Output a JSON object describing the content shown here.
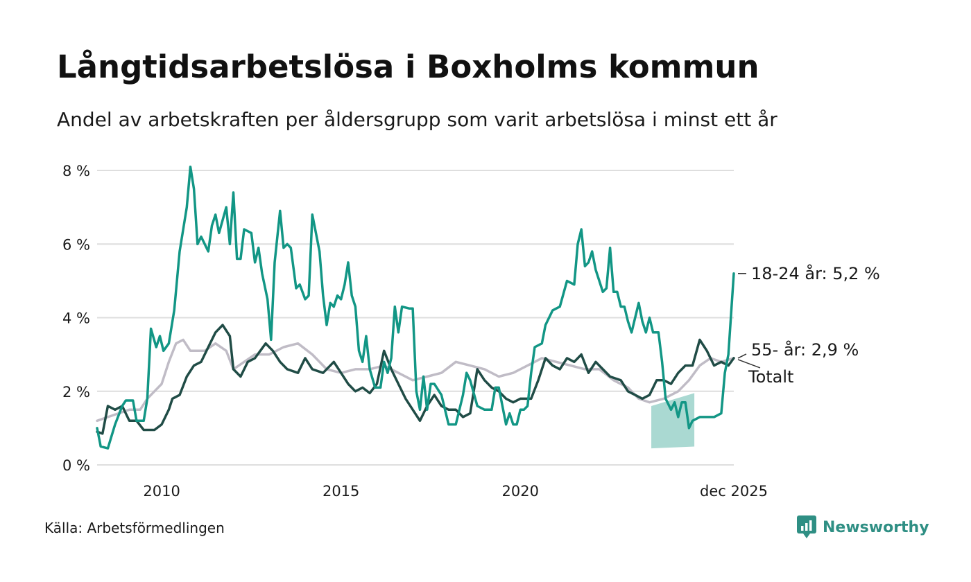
{
  "title": "Långtidsarbetslösa i Boxholms kommun",
  "subtitle": "Andel av arbetskraften per åldersgrupp som varit arbetslösa i minst ett år",
  "source": "Källa: Arbetsförmedlingen",
  "brand": "Newsworthy",
  "colors": {
    "youth": "#129685",
    "senior": "#204c46",
    "total": "#c0bcc6",
    "band": "#a5d7d0",
    "grid": "#dedede",
    "brand": "#2f8f84"
  },
  "chart_data": {
    "type": "line",
    "title": "Långtidsarbetslösa i Boxholms kommun",
    "xlabel": "",
    "ylabel": "",
    "xlim": [
      2008.2,
      2025.95
    ],
    "ylim": [
      0,
      8
    ],
    "y_ticks": [
      0,
      2,
      4,
      6,
      8
    ],
    "y_tick_labels": [
      "0 %",
      "2 %",
      "4 %",
      "6 %",
      "8 %"
    ],
    "x_ticks": [
      2010,
      2015,
      2020,
      2025.95
    ],
    "x_tick_labels": [
      "2010",
      "2015",
      "2020",
      "dec 2025"
    ],
    "grid": true,
    "legend": "direct labels at line ends (right)",
    "end_labels": [
      {
        "series": "18-24 år",
        "text": "18-24 år: 5,2 %",
        "value": 5.2
      },
      {
        "series": "55- år",
        "text": "55- år: 2,9 %",
        "value": 2.9
      },
      {
        "series": "Totalt",
        "text": "Totalt",
        "value": 2.9
      }
    ],
    "uncertainty_band": {
      "series": "18-24 år",
      "x": [
        2023.65,
        2024.85
      ],
      "lower": [
        0.45,
        0.5
      ],
      "upper": [
        1.6,
        1.95
      ]
    },
    "series": [
      {
        "name": "Totalt",
        "color": "#c0bcc6",
        "points": [
          [
            2008.2,
            1.2
          ],
          [
            2008.5,
            1.3
          ],
          [
            2008.8,
            1.4
          ],
          [
            2009.1,
            1.5
          ],
          [
            2009.4,
            1.5
          ],
          [
            2009.6,
            1.8
          ],
          [
            2009.8,
            2.0
          ],
          [
            2010.0,
            2.2
          ],
          [
            2010.2,
            2.8
          ],
          [
            2010.4,
            3.3
          ],
          [
            2010.6,
            3.4
          ],
          [
            2010.8,
            3.1
          ],
          [
            2011.2,
            3.1
          ],
          [
            2011.5,
            3.3
          ],
          [
            2011.8,
            3.1
          ],
          [
            2012.0,
            2.6
          ],
          [
            2012.3,
            2.8
          ],
          [
            2012.6,
            3.0
          ],
          [
            2013.0,
            3.0
          ],
          [
            2013.4,
            3.2
          ],
          [
            2013.8,
            3.3
          ],
          [
            2014.2,
            3.0
          ],
          [
            2014.6,
            2.6
          ],
          [
            2015.0,
            2.5
          ],
          [
            2015.4,
            2.6
          ],
          [
            2015.8,
            2.6
          ],
          [
            2016.2,
            2.7
          ],
          [
            2016.6,
            2.5
          ],
          [
            2017.0,
            2.3
          ],
          [
            2017.4,
            2.4
          ],
          [
            2017.8,
            2.5
          ],
          [
            2018.2,
            2.8
          ],
          [
            2018.6,
            2.7
          ],
          [
            2019.0,
            2.6
          ],
          [
            2019.4,
            2.4
          ],
          [
            2019.8,
            2.5
          ],
          [
            2020.2,
            2.7
          ],
          [
            2020.6,
            2.9
          ],
          [
            2021.0,
            2.8
          ],
          [
            2021.4,
            2.7
          ],
          [
            2021.8,
            2.6
          ],
          [
            2022.2,
            2.6
          ],
          [
            2022.6,
            2.3
          ],
          [
            2023.0,
            2.1
          ],
          [
            2023.3,
            1.8
          ],
          [
            2023.6,
            1.7
          ],
          [
            2024.0,
            1.8
          ],
          [
            2024.4,
            2.0
          ],
          [
            2024.7,
            2.3
          ],
          [
            2025.0,
            2.7
          ],
          [
            2025.3,
            2.9
          ],
          [
            2025.6,
            2.8
          ],
          [
            2025.95,
            2.9
          ]
        ]
      },
      {
        "name": "55- år",
        "color": "#204c46",
        "points": [
          [
            2008.2,
            0.9
          ],
          [
            2008.35,
            0.85
          ],
          [
            2008.5,
            1.6
          ],
          [
            2008.7,
            1.5
          ],
          [
            2008.9,
            1.6
          ],
          [
            2009.1,
            1.2
          ],
          [
            2009.3,
            1.2
          ],
          [
            2009.5,
            0.95
          ],
          [
            2009.8,
            0.95
          ],
          [
            2010.0,
            1.1
          ],
          [
            2010.2,
            1.5
          ],
          [
            2010.3,
            1.8
          ],
          [
            2010.5,
            1.9
          ],
          [
            2010.7,
            2.4
          ],
          [
            2010.9,
            2.7
          ],
          [
            2011.1,
            2.8
          ],
          [
            2011.3,
            3.2
          ],
          [
            2011.5,
            3.6
          ],
          [
            2011.7,
            3.8
          ],
          [
            2011.9,
            3.5
          ],
          [
            2012.0,
            2.6
          ],
          [
            2012.2,
            2.4
          ],
          [
            2012.4,
            2.8
          ],
          [
            2012.6,
            2.9
          ],
          [
            2012.9,
            3.3
          ],
          [
            2013.1,
            3.1
          ],
          [
            2013.3,
            2.8
          ],
          [
            2013.5,
            2.6
          ],
          [
            2013.8,
            2.5
          ],
          [
            2014.0,
            2.9
          ],
          [
            2014.2,
            2.6
          ],
          [
            2014.5,
            2.5
          ],
          [
            2014.8,
            2.8
          ],
          [
            2015.0,
            2.5
          ],
          [
            2015.2,
            2.2
          ],
          [
            2015.4,
            2.0
          ],
          [
            2015.6,
            2.1
          ],
          [
            2015.8,
            1.95
          ],
          [
            2016.0,
            2.2
          ],
          [
            2016.2,
            3.1
          ],
          [
            2016.4,
            2.6
          ],
          [
            2016.6,
            2.2
          ],
          [
            2016.8,
            1.8
          ],
          [
            2017.0,
            1.5
          ],
          [
            2017.2,
            1.2
          ],
          [
            2017.4,
            1.6
          ],
          [
            2017.6,
            1.9
          ],
          [
            2017.8,
            1.6
          ],
          [
            2018.0,
            1.5
          ],
          [
            2018.2,
            1.5
          ],
          [
            2018.4,
            1.3
          ],
          [
            2018.6,
            1.4
          ],
          [
            2018.8,
            2.6
          ],
          [
            2019.0,
            2.3
          ],
          [
            2019.2,
            2.1
          ],
          [
            2019.4,
            2.0
          ],
          [
            2019.6,
            1.8
          ],
          [
            2019.8,
            1.7
          ],
          [
            2020.0,
            1.8
          ],
          [
            2020.3,
            1.8
          ],
          [
            2020.5,
            2.3
          ],
          [
            2020.7,
            2.9
          ],
          [
            2020.9,
            2.7
          ],
          [
            2021.1,
            2.6
          ],
          [
            2021.3,
            2.9
          ],
          [
            2021.5,
            2.8
          ],
          [
            2021.7,
            3.0
          ],
          [
            2021.9,
            2.5
          ],
          [
            2022.1,
            2.8
          ],
          [
            2022.3,
            2.6
          ],
          [
            2022.5,
            2.4
          ],
          [
            2022.8,
            2.3
          ],
          [
            2023.0,
            2.0
          ],
          [
            2023.2,
            1.9
          ],
          [
            2023.4,
            1.8
          ],
          [
            2023.6,
            1.9
          ],
          [
            2023.8,
            2.3
          ],
          [
            2024.0,
            2.3
          ],
          [
            2024.2,
            2.2
          ],
          [
            2024.4,
            2.5
          ],
          [
            2024.6,
            2.7
          ],
          [
            2024.8,
            2.7
          ],
          [
            2025.0,
            3.4
          ],
          [
            2025.2,
            3.1
          ],
          [
            2025.4,
            2.7
          ],
          [
            2025.6,
            2.8
          ],
          [
            2025.8,
            2.7
          ],
          [
            2025.95,
            2.9
          ]
        ]
      },
      {
        "name": "18-24 år",
        "color": "#129685",
        "points": [
          [
            2008.2,
            1.0
          ],
          [
            2008.3,
            0.5
          ],
          [
            2008.5,
            0.45
          ],
          [
            2008.7,
            1.1
          ],
          [
            2008.9,
            1.6
          ],
          [
            2009.0,
            1.75
          ],
          [
            2009.2,
            1.75
          ],
          [
            2009.3,
            1.2
          ],
          [
            2009.5,
            1.2
          ],
          [
            2009.6,
            1.8
          ],
          [
            2009.7,
            3.7
          ],
          [
            2009.85,
            3.2
          ],
          [
            2009.95,
            3.5
          ],
          [
            2010.05,
            3.1
          ],
          [
            2010.2,
            3.3
          ],
          [
            2010.35,
            4.2
          ],
          [
            2010.5,
            5.8
          ],
          [
            2010.7,
            7.0
          ],
          [
            2010.8,
            8.1
          ],
          [
            2010.9,
            7.5
          ],
          [
            2011.0,
            6.0
          ],
          [
            2011.1,
            6.2
          ],
          [
            2011.3,
            5.8
          ],
          [
            2011.4,
            6.5
          ],
          [
            2011.5,
            6.8
          ],
          [
            2011.6,
            6.3
          ],
          [
            2011.8,
            7.0
          ],
          [
            2011.9,
            6.0
          ],
          [
            2012.0,
            7.4
          ],
          [
            2012.1,
            5.6
          ],
          [
            2012.2,
            5.6
          ],
          [
            2012.3,
            6.4
          ],
          [
            2012.5,
            6.3
          ],
          [
            2012.6,
            5.5
          ],
          [
            2012.7,
            5.9
          ],
          [
            2012.8,
            5.2
          ],
          [
            2012.95,
            4.5
          ],
          [
            2013.05,
            3.4
          ],
          [
            2013.15,
            5.5
          ],
          [
            2013.3,
            6.9
          ],
          [
            2013.4,
            5.9
          ],
          [
            2013.5,
            6.0
          ],
          [
            2013.6,
            5.9
          ],
          [
            2013.75,
            4.8
          ],
          [
            2013.85,
            4.9
          ],
          [
            2014.0,
            4.5
          ],
          [
            2014.1,
            4.6
          ],
          [
            2014.2,
            6.8
          ],
          [
            2014.3,
            6.3
          ],
          [
            2014.4,
            5.8
          ],
          [
            2014.5,
            4.6
          ],
          [
            2014.6,
            3.8
          ],
          [
            2014.7,
            4.4
          ],
          [
            2014.8,
            4.3
          ],
          [
            2014.9,
            4.6
          ],
          [
            2015.0,
            4.5
          ],
          [
            2015.1,
            4.9
          ],
          [
            2015.2,
            5.5
          ],
          [
            2015.3,
            4.6
          ],
          [
            2015.4,
            4.3
          ],
          [
            2015.5,
            3.1
          ],
          [
            2015.6,
            2.8
          ],
          [
            2015.7,
            3.5
          ],
          [
            2015.8,
            2.6
          ],
          [
            2015.95,
            2.1
          ],
          [
            2016.1,
            2.1
          ],
          [
            2016.2,
            2.8
          ],
          [
            2016.3,
            2.5
          ],
          [
            2016.4,
            2.9
          ],
          [
            2016.5,
            4.3
          ],
          [
            2016.6,
            3.6
          ],
          [
            2016.7,
            4.3
          ],
          [
            2016.9,
            4.25
          ],
          [
            2017.0,
            4.25
          ],
          [
            2017.1,
            2.0
          ],
          [
            2017.2,
            1.5
          ],
          [
            2017.3,
            2.4
          ],
          [
            2017.4,
            1.5
          ],
          [
            2017.5,
            2.2
          ],
          [
            2017.6,
            2.2
          ],
          [
            2017.8,
            1.9
          ],
          [
            2018.0,
            1.1
          ],
          [
            2018.2,
            1.1
          ],
          [
            2018.4,
            1.9
          ],
          [
            2018.5,
            2.5
          ],
          [
            2018.6,
            2.3
          ],
          [
            2018.8,
            1.6
          ],
          [
            2019.0,
            1.5
          ],
          [
            2019.2,
            1.5
          ],
          [
            2019.3,
            2.1
          ],
          [
            2019.4,
            2.1
          ],
          [
            2019.5,
            1.6
          ],
          [
            2019.6,
            1.1
          ],
          [
            2019.7,
            1.4
          ],
          [
            2019.8,
            1.1
          ],
          [
            2019.9,
            1.1
          ],
          [
            2020.0,
            1.5
          ],
          [
            2020.1,
            1.5
          ],
          [
            2020.2,
            1.6
          ],
          [
            2020.3,
            2.5
          ],
          [
            2020.4,
            3.2
          ],
          [
            2020.6,
            3.3
          ],
          [
            2020.7,
            3.8
          ],
          [
            2020.9,
            4.2
          ],
          [
            2021.1,
            4.3
          ],
          [
            2021.3,
            5.0
          ],
          [
            2021.5,
            4.9
          ],
          [
            2021.6,
            6.0
          ],
          [
            2021.7,
            6.4
          ],
          [
            2021.8,
            5.4
          ],
          [
            2021.9,
            5.5
          ],
          [
            2022.0,
            5.8
          ],
          [
            2022.1,
            5.3
          ],
          [
            2022.2,
            5.0
          ],
          [
            2022.3,
            4.7
          ],
          [
            2022.4,
            4.8
          ],
          [
            2022.5,
            5.9
          ],
          [
            2022.6,
            4.7
          ],
          [
            2022.7,
            4.7
          ],
          [
            2022.8,
            4.3
          ],
          [
            2022.9,
            4.3
          ],
          [
            2023.0,
            3.9
          ],
          [
            2023.1,
            3.6
          ],
          [
            2023.3,
            4.4
          ],
          [
            2023.4,
            3.9
          ],
          [
            2023.5,
            3.6
          ],
          [
            2023.6,
            4.0
          ],
          [
            2023.7,
            3.6
          ],
          [
            2023.85,
            3.6
          ],
          [
            2023.95,
            2.8
          ],
          [
            2024.05,
            1.8
          ],
          [
            2024.2,
            1.5
          ],
          [
            2024.3,
            1.7
          ],
          [
            2024.4,
            1.3
          ],
          [
            2024.5,
            1.7
          ],
          [
            2024.6,
            1.7
          ],
          [
            2024.7,
            1.0
          ],
          [
            2024.8,
            1.2
          ],
          [
            2025.0,
            1.3
          ],
          [
            2025.2,
            1.3
          ],
          [
            2025.4,
            1.3
          ],
          [
            2025.6,
            1.4
          ],
          [
            2025.7,
            2.5
          ],
          [
            2025.8,
            3.0
          ],
          [
            2025.95,
            5.2
          ]
        ]
      }
    ]
  }
}
